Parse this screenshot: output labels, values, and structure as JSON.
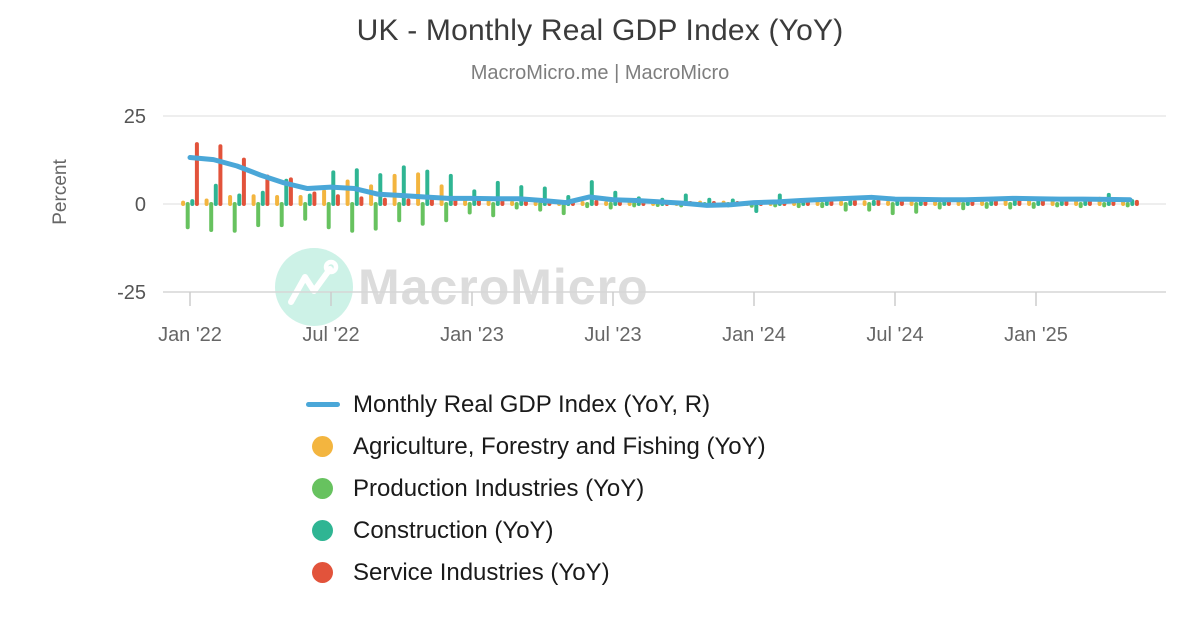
{
  "header": {
    "title": "UK - Monthly Real GDP Index (YoY)",
    "subtitle": "MacroMicro.me | MacroMicro"
  },
  "watermark": {
    "text": "MacroMicro",
    "circle_color": "#cdf2e7",
    "text_color": "#dcdcdc"
  },
  "axes": {
    "ylabel": "Percent",
    "y_ticks": [
      {
        "label": "25",
        "value": 25
      },
      {
        "label": "0",
        "value": 0
      },
      {
        "label": "-25",
        "value": -25
      }
    ],
    "x_ticks": {
      "labels": [
        "Jan '22",
        "Jul '22",
        "Jan '23",
        "Jul '23",
        "Jan '24",
        "Jul '24",
        "Jan '25"
      ],
      "month_indices": [
        0,
        6,
        12,
        18,
        24,
        30,
        36
      ]
    }
  },
  "chart_data": {
    "type": "combo-bar-line",
    "title": "UK - Monthly Real GDP Index (YoY)",
    "xlabel": "",
    "ylabel": "Percent",
    "ylim": [
      -25,
      25
    ],
    "grid": "horizontal",
    "legend_position": "bottom",
    "categories": [
      "2022-01",
      "2022-02",
      "2022-03",
      "2022-04",
      "2022-05",
      "2022-06",
      "2022-07",
      "2022-08",
      "2022-09",
      "2022-10",
      "2022-11",
      "2022-12",
      "2023-01",
      "2023-02",
      "2023-03",
      "2023-04",
      "2023-05",
      "2023-06",
      "2023-07",
      "2023-08",
      "2023-09",
      "2023-10",
      "2023-11",
      "2023-12",
      "2024-01",
      "2024-02",
      "2024-03",
      "2024-04",
      "2024-05",
      "2024-06",
      "2024-07",
      "2024-08",
      "2024-09",
      "2024-10",
      "2024-11",
      "2024-12",
      "2025-01",
      "2025-02",
      "2025-03",
      "2025-04",
      "2025-05"
    ],
    "line_series": {
      "name": "Monthly Real GDP Index (YoY, R)",
      "type": "line",
      "color": "#4aa7d8",
      "values": [
        13.2,
        12.6,
        10.8,
        8.2,
        6.0,
        4.4,
        4.8,
        4.4,
        2.8,
        2.4,
        2.0,
        1.6,
        1.6,
        1.5,
        1.5,
        1.0,
        0.4,
        2.0,
        1.2,
        1.0,
        0.6,
        0.2,
        -0.4,
        -0.2,
        0.4,
        0.6,
        1.0,
        1.3,
        1.6,
        1.9,
        1.4,
        1.3,
        1.2,
        1.2,
        1.4,
        1.6,
        1.5,
        1.4,
        1.4,
        1.3,
        1.2
      ]
    },
    "bar_series": [
      {
        "name": "Agriculture, Forestry and Fishing (YoY)",
        "type": "bar",
        "color": "#f3b53f",
        "values": [
          0.4,
          1.0,
          2.0,
          2.2,
          2.0,
          2.0,
          3.6,
          6.4,
          5.0,
          8.0,
          8.4,
          5.0,
          1.6,
          0.6,
          0.4,
          0.4,
          0.3,
          0.3,
          0.3,
          0.3,
          0.3,
          0.4,
          0.4,
          0.4,
          0.3,
          0.3,
          0.3,
          0.4,
          0.4,
          0.5,
          0.4,
          0.4,
          0.5,
          0.8,
          0.8,
          1.2,
          1.4,
          1.4,
          1.4,
          1.5,
          1.2
        ]
      },
      {
        "name": "Production Industries (YoY)",
        "type": "bar",
        "color": "#67c25f",
        "values": [
          -6.6,
          -7.4,
          -7.6,
          -6.0,
          -6.0,
          -4.2,
          -6.6,
          -7.6,
          -7.0,
          -4.6,
          -5.6,
          -4.6,
          -2.4,
          -3.2,
          -1.0,
          -1.6,
          -2.6,
          -0.6,
          -1.0,
          -0.4,
          -0.3,
          -0.4,
          -0.4,
          -0.4,
          -0.5,
          -0.4,
          -0.6,
          -0.6,
          -1.6,
          -1.6,
          -2.6,
          -2.2,
          -1.0,
          -1.2,
          -0.8,
          -1.0,
          -0.8,
          -0.4,
          -0.6,
          -0.4,
          -0.4
        ]
      },
      {
        "name": "Construction (YoY)",
        "type": "bar",
        "color": "#2fb593",
        "values": [
          0.8,
          5.2,
          2.4,
          3.2,
          6.6,
          2.4,
          9.0,
          9.6,
          8.2,
          10.4,
          9.2,
          8.0,
          3.6,
          6.0,
          4.8,
          4.4,
          2.0,
          6.2,
          3.2,
          1.6,
          1.2,
          2.4,
          1.2,
          1.0,
          -2.0,
          2.4,
          1.0,
          0.8,
          0.6,
          0.6,
          0.6,
          0.5,
          0.5,
          0.6,
          0.8,
          1.6,
          0.6,
          0.5,
          0.6,
          2.6,
          0.8
        ]
      },
      {
        "name": "Service Industries (YoY)",
        "type": "bar",
        "color": "#e2533b",
        "values": [
          17.0,
          16.4,
          12.6,
          7.8,
          7.0,
          3.0,
          2.2,
          1.6,
          1.2,
          1.0,
          1.0,
          0.8,
          0.8,
          0.6,
          0.6,
          0.5,
          0.4,
          0.6,
          0.5,
          0.4,
          0.3,
          0.3,
          0.3,
          0.3,
          0.4,
          0.4,
          0.5,
          0.5,
          0.6,
          0.8,
          0.6,
          0.6,
          0.6,
          0.6,
          0.6,
          0.9,
          0.9,
          0.6,
          0.9,
          0.6,
          0.6
        ]
      }
    ]
  },
  "legend": {
    "items": [
      {
        "label": "Monthly Real GDP Index (YoY, R)",
        "marker": "line",
        "color": "#4aa7d8"
      },
      {
        "label": "Agriculture, Forestry and Fishing (YoY)",
        "marker": "circle",
        "color": "#f3b53f"
      },
      {
        "label": "Production Industries (YoY)",
        "marker": "circle",
        "color": "#67c25f"
      },
      {
        "label": "Construction (YoY)",
        "marker": "circle",
        "color": "#2fb593"
      },
      {
        "label": "Service Industries (YoY)",
        "marker": "circle",
        "color": "#e2533b"
      }
    ]
  },
  "style_colors": {
    "grid": "#e3e3e3",
    "axis_line": "#d6d6d6",
    "tick": "#cccccc",
    "axis_text": "#666666",
    "y_tick_text": "#555555"
  }
}
